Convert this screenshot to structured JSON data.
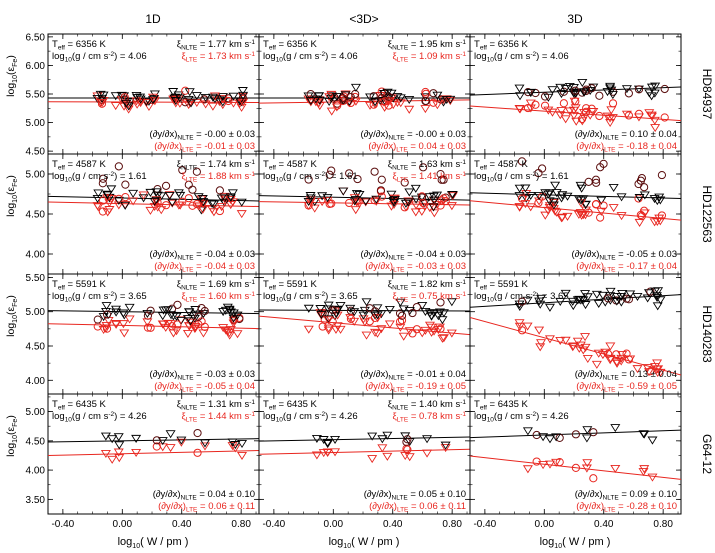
{
  "chart_data": {
    "type": "scatter",
    "columns": [
      "1D",
      "<3D>",
      "3D"
    ],
    "stars": [
      "HD84937",
      "HD122563",
      "HD140283",
      "G64-12"
    ],
    "xlabel": "log",
    "xlabel_sub": "10",
    "xlabel_rest": "( W / pm )",
    "ylabel": "log",
    "ylabel_sub": "10",
    "ylabel_rest": "(ε",
    "ylabel_sub2": "Fe",
    "ylabel_end": ")",
    "xlim": [
      -0.5,
      0.92
    ],
    "xticks": [
      -0.4,
      0.0,
      0.4,
      0.8
    ],
    "xtick_labels": [
      "-0.40",
      "0.00",
      "0.40",
      "0.80"
    ],
    "colors": {
      "nlte": "#000000",
      "lte": "#e8261f",
      "circle_nlte": "#5a0d0d"
    },
    "rows": [
      {
        "ylim": [
          4.45,
          6.55
        ],
        "yticks": [
          4.5,
          5.0,
          5.5,
          6.0,
          6.5
        ],
        "ytick_labels": [
          "4.50",
          "5.00",
          "5.50",
          "6.00",
          "6.50"
        ],
        "teff": "6356 K",
        "logg": "4.06",
        "panels": [
          {
            "xi_nlte": "1.77 km s",
            "xi_lte": "1.73 km s",
            "slope_nlte": "-0.00 ± 0.03",
            "slope_lte": "-0.01 ± 0.03",
            "nlte_level": 5.43,
            "nlte_slope": 0.0,
            "lte_level": 5.36,
            "lte_slope": -0.01,
            "nlte_scatter": 0.06,
            "lte_scatter": 0.06
          },
          {
            "xi_nlte": "1.95 km s",
            "xi_lte": "1.09 km s",
            "slope_nlte": "-0.00 ± 0.03",
            "slope_lte": "0.04 ± 0.03",
            "nlte_level": 5.43,
            "nlte_slope": 0.0,
            "lte_level": 5.36,
            "lte_slope": 0.04,
            "nlte_scatter": 0.06,
            "lte_scatter": 0.06
          },
          {
            "xi_nlte": "",
            "xi_lte": "",
            "slope_nlte": "0.10 ± 0.04",
            "slope_lte": "-0.18 ± 0.04",
            "nlte_level": 5.53,
            "nlte_slope": 0.1,
            "lte_level": 5.2,
            "lte_slope": -0.18,
            "nlte_scatter": 0.07,
            "lte_scatter": 0.08
          }
        ]
      },
      {
        "ylim": [
          3.75,
          5.25
        ],
        "yticks": [
          4.0,
          4.5,
          5.0
        ],
        "ytick_labels": [
          "4.00",
          "4.50",
          "5.00"
        ],
        "teff": "4587 K",
        "logg": "1.61",
        "panels": [
          {
            "xi_nlte": "1.74 km s",
            "xi_lte": "1.88 km s",
            "slope_nlte": "-0.04 ± 0.03",
            "slope_lte": "-0.04 ± 0.03",
            "nlte_level": 4.7,
            "nlte_slope": -0.04,
            "lte_level": 4.63,
            "lte_slope": -0.04,
            "nlte_scatter": 0.06,
            "lte_scatter": 0.06
          },
          {
            "xi_nlte": "1.63 km s",
            "xi_lte": "1.41 km s",
            "slope_nlte": "-0.04 ± 0.03",
            "slope_lte": "-0.03 ± 0.03",
            "nlte_level": 4.71,
            "nlte_slope": -0.04,
            "lte_level": 4.64,
            "lte_slope": -0.03,
            "nlte_scatter": 0.06,
            "lte_scatter": 0.06
          },
          {
            "xi_nlte": "",
            "xi_lte": "",
            "slope_nlte": "-0.05 ± 0.03",
            "slope_lte": "-0.17 ± 0.04",
            "nlte_level": 4.74,
            "nlte_slope": -0.05,
            "lte_level": 4.58,
            "lte_slope": -0.17,
            "nlte_scatter": 0.06,
            "lte_scatter": 0.07
          }
        ]
      },
      {
        "ylim": [
          3.8,
          5.55
        ],
        "yticks": [
          4.0,
          4.5,
          5.0,
          5.5
        ],
        "ytick_labels": [
          "4.00",
          "4.50",
          "5.00",
          "5.50"
        ],
        "teff": "5591 K",
        "logg": "3.65",
        "panels": [
          {
            "xi_nlte": "1.69 km s",
            "xi_lte": "1.60 km s",
            "slope_nlte": "-0.03 ± 0.03",
            "slope_lte": "-0.05 ± 0.04",
            "nlte_level": 5.0,
            "nlte_slope": -0.03,
            "lte_level": 4.8,
            "lte_slope": -0.05,
            "nlte_scatter": 0.06,
            "lte_scatter": 0.06
          },
          {
            "xi_nlte": "1.82 km s",
            "xi_lte": "0.75 km s",
            "slope_nlte": "-0.01 ± 0.04",
            "slope_lte": "-0.19 ± 0.05",
            "nlte_level": 5.02,
            "nlte_slope": -0.01,
            "lte_level": 4.84,
            "lte_slope": -0.19,
            "nlte_scatter": 0.06,
            "lte_scatter": 0.07
          },
          {
            "xi_nlte": "",
            "xi_lte": "",
            "slope_nlte": "0.13 ± 0.04",
            "slope_lte": "-0.59 ± 0.05",
            "nlte_level": 5.13,
            "nlte_slope": 0.13,
            "lte_level": 4.62,
            "lte_slope": -0.59,
            "nlte_scatter": 0.06,
            "lte_scatter": 0.08
          }
        ]
      },
      {
        "ylim": [
          3.25,
          5.3
        ],
        "yticks": [
          3.5,
          4.0,
          4.5,
          5.0
        ],
        "ytick_labels": [
          "3.50",
          "4.00",
          "4.50",
          "5.00"
        ],
        "teff": "6435 K",
        "logg": "4.26",
        "panels": [
          {
            "xi_nlte": "1.31 km s",
            "xi_lte": "1.44 km s",
            "slope_nlte": "0.04 ± 0.10",
            "slope_lte": "0.06 ± 0.11",
            "nlte_level": 4.5,
            "nlte_slope": 0.04,
            "lte_level": 4.28,
            "lte_slope": 0.06,
            "nlte_scatter": 0.06,
            "lte_scatter": 0.06
          },
          {
            "xi_nlte": "1.40 km s",
            "xi_lte": "0.78 km s",
            "slope_nlte": "0.05 ± 0.10",
            "slope_lte": "0.06 ± 0.11",
            "nlte_level": 4.52,
            "nlte_slope": 0.05,
            "lte_level": 4.3,
            "lte_slope": 0.06,
            "nlte_scatter": 0.06,
            "lte_scatter": 0.06
          },
          {
            "xi_nlte": "",
            "xi_lte": "",
            "slope_nlte": "0.09 ± 0.10",
            "slope_lte": "-0.28 ± 0.10",
            "nlte_level": 4.6,
            "nlte_slope": 0.09,
            "lte_level": 4.1,
            "lte_slope": -0.28,
            "nlte_scatter": 0.07,
            "lte_scatter": 0.08
          }
        ]
      }
    ]
  }
}
